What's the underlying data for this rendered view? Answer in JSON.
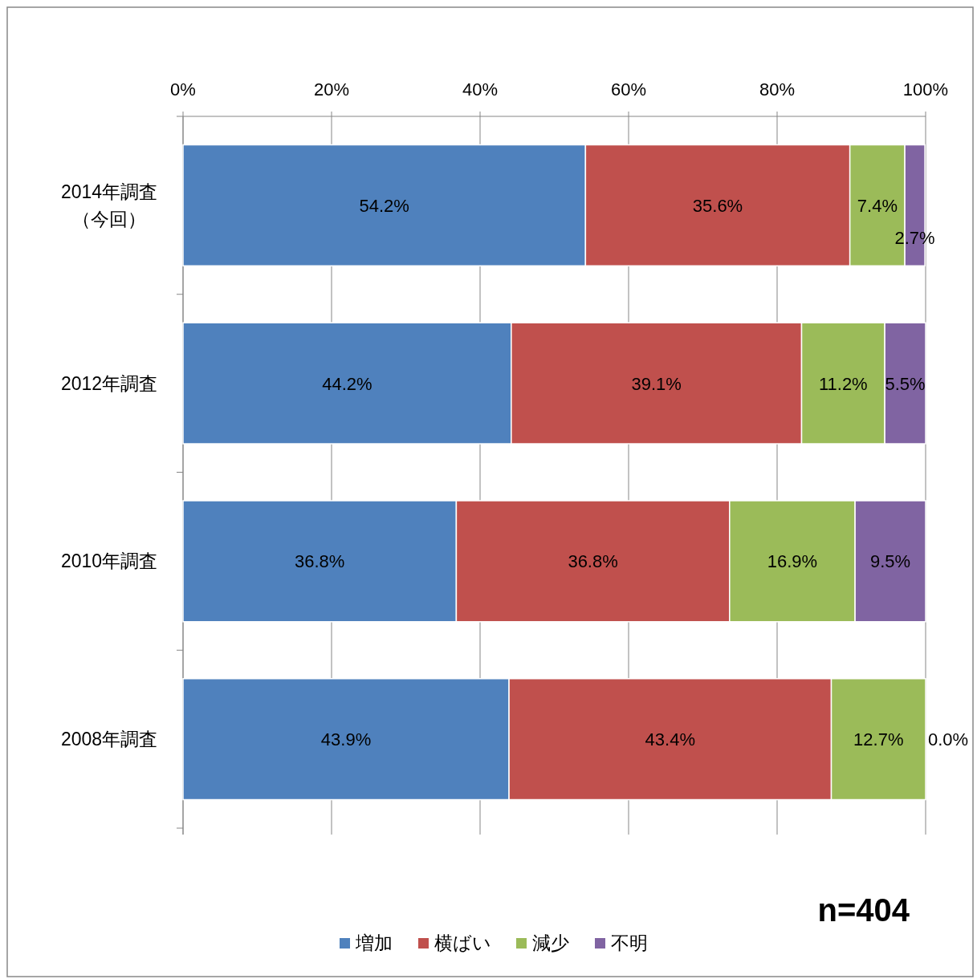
{
  "chart_data": {
    "type": "bar",
    "orientation": "horizontal",
    "stacked": true,
    "categories": [
      "2014年調査（今回）",
      "2012年調査",
      "2010年調査",
      "2008年調査"
    ],
    "series": [
      {
        "name": "増加",
        "color": "#4f81bd",
        "values": [
          54.2,
          44.2,
          36.8,
          43.9
        ],
        "value_labels": [
          "54.2%",
          "44.2%",
          "36.8%",
          "43.9%"
        ]
      },
      {
        "name": "横ばい",
        "color": "#c0504d",
        "values": [
          35.6,
          39.1,
          36.8,
          43.4
        ],
        "value_labels": [
          "35.6%",
          "39.1%",
          "36.8%",
          "43.4%"
        ]
      },
      {
        "name": "減少",
        "color": "#9bbb59",
        "values": [
          7.4,
          11.2,
          16.9,
          12.7
        ],
        "value_labels": [
          "7.4%",
          "11.2%",
          "16.9%",
          "12.7%"
        ]
      },
      {
        "name": "不明",
        "color": "#8064a2",
        "values": [
          2.7,
          5.5,
          9.5,
          0.0
        ],
        "value_labels": [
          "2.7%",
          "5.5%",
          "9.5%",
          "0.0%"
        ]
      }
    ],
    "xlim": [
      0,
      100
    ],
    "xticks": [
      {
        "value": 0,
        "label": "0%"
      },
      {
        "value": 20,
        "label": "20%"
      },
      {
        "value": 40,
        "label": "40%"
      },
      {
        "value": 60,
        "label": "60%"
      },
      {
        "value": 80,
        "label": "80%"
      },
      {
        "value": 100,
        "label": "100%"
      }
    ],
    "grid": "x",
    "legend": "bottom",
    "annotations": [
      "n=404"
    ]
  }
}
